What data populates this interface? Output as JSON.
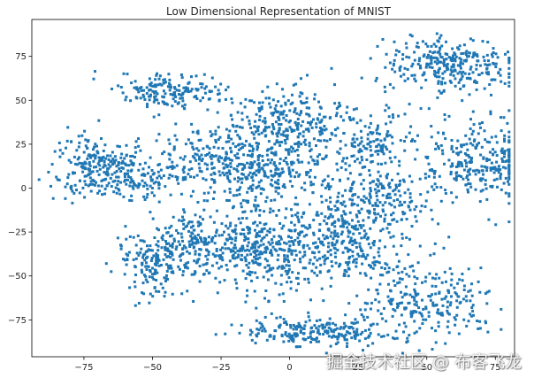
{
  "chart_data": {
    "type": "scatter",
    "title": "Low Dimensional Representation of MNIST",
    "xlabel": "",
    "ylabel": "",
    "xlim": [
      -94,
      82
    ],
    "ylim": [
      -96,
      96
    ],
    "xticks": [
      -75,
      -50,
      -25,
      0,
      25,
      50,
      75
    ],
    "yticks": [
      -75,
      -50,
      -25,
      0,
      25,
      50,
      75
    ],
    "xtick_labels": [
      "−75",
      "−50",
      "−25",
      "0",
      "25",
      "50",
      "75"
    ],
    "ytick_labels": [
      "−75",
      "−50",
      "−25",
      "0",
      "25",
      "50",
      "75"
    ],
    "grid": false,
    "point_color": "#1f77b4",
    "series": [
      {
        "name": "points",
        "clusters": [
          {
            "cx": 58,
            "cy": 70,
            "sx": 12,
            "sy": 8,
            "n": 300
          },
          {
            "cx": 68,
            "cy": 16,
            "sx": 10,
            "sy": 11,
            "n": 280
          },
          {
            "cx": -70,
            "cy": 12,
            "sx": 8,
            "sy": 9,
            "n": 230
          },
          {
            "cx": -55,
            "cy": 2,
            "sx": 5,
            "sy": 5,
            "n": 60
          },
          {
            "cx": -43,
            "cy": 55,
            "sx": 10,
            "sy": 5,
            "n": 170
          },
          {
            "cx": -30,
            "cy": 15,
            "sx": 12,
            "sy": 9,
            "n": 230
          },
          {
            "cx": -7,
            "cy": 8,
            "sx": 10,
            "sy": 8,
            "n": 180
          },
          {
            "cx": 0,
            "cy": 35,
            "sx": 12,
            "sy": 10,
            "n": 330
          },
          {
            "cx": 30,
            "cy": 22,
            "sx": 8,
            "sy": 9,
            "n": 130
          },
          {
            "cx": -35,
            "cy": -30,
            "sx": 9,
            "sy": 8,
            "n": 180
          },
          {
            "cx": -48,
            "cy": -43,
            "sx": 8,
            "sy": 9,
            "n": 160
          },
          {
            "cx": -10,
            "cy": -35,
            "sx": 10,
            "sy": 12,
            "n": 300
          },
          {
            "cx": 20,
            "cy": -30,
            "sx": 14,
            "sy": 12,
            "n": 380
          },
          {
            "cx": 30,
            "cy": -5,
            "sx": 10,
            "sy": 7,
            "n": 150
          },
          {
            "cx": 50,
            "cy": -65,
            "sx": 12,
            "sy": 10,
            "n": 230
          },
          {
            "cx": 10,
            "cy": -82,
            "sx": 14,
            "sy": 4,
            "n": 230
          }
        ]
      }
    ]
  },
  "watermark": "掘金技术社区 @ 布客飞龙"
}
